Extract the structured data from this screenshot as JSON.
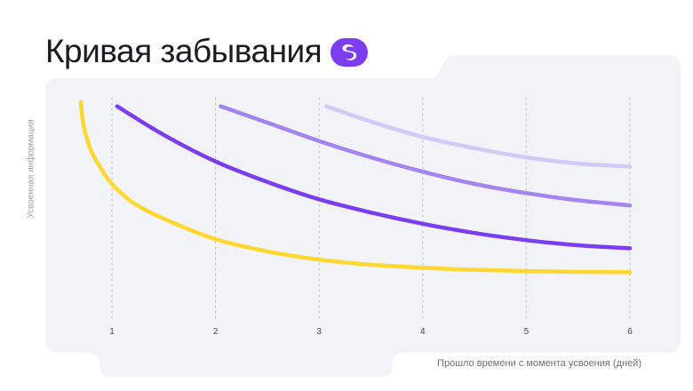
{
  "header": {
    "title": "Кривая забывания",
    "logo_icon": "skyeng-logo-icon"
  },
  "colors": {
    "background": "#ffffff",
    "panel": "#f1f3f6",
    "grid": "#c9ccd3",
    "yellow": "#ffd72e",
    "purple_dark": "#7c3cf0",
    "purple_mid": "#a384f2",
    "purple_light": "#d3c9f7",
    "logo": "#7c3cf0"
  },
  "chart_data": {
    "type": "line",
    "title": "Кривая забывания",
    "xlabel": "Прошло времени с момента усвоения (дней)",
    "ylabel": "Усвоенная информация",
    "x_ticks": [
      1,
      2,
      3,
      4,
      5,
      6
    ],
    "xlim": [
      0.3,
      6.7
    ],
    "ylim": [
      0,
      100
    ],
    "grid": "vertical-dotted",
    "y_tick_labels": "none",
    "series": [
      {
        "color": "#ffd72e",
        "x": [
          0.7,
          0.72,
          0.76,
          0.8,
          0.9,
          1.0,
          1.2,
          1.5,
          2.0,
          2.5,
          3.0,
          3.5,
          4.0,
          4.5,
          5.0,
          5.5,
          6.0
        ],
        "y": [
          100,
          90,
          82,
          76,
          67,
          60,
          51,
          43,
          33,
          27,
          23,
          20.5,
          19,
          18,
          17.4,
          17,
          16.8
        ]
      },
      {
        "color": "#7c3cf0",
        "x": [
          1.05,
          1.5,
          2.0,
          2.5,
          3.0,
          3.5,
          4.0,
          4.5,
          5.0,
          5.5,
          6.0
        ],
        "y": [
          98,
          84,
          71,
          61,
          52.5,
          46,
          40.5,
          36,
          32.5,
          30,
          28.5
        ]
      },
      {
        "color": "#a384f2",
        "x": [
          2.05,
          2.5,
          3.0,
          3.5,
          4.0,
          4.5,
          5.0,
          5.5,
          6.0
        ],
        "y": [
          98,
          90,
          81,
          73,
          66,
          60,
          55.5,
          52,
          49.5
        ]
      },
      {
        "color": "#d3c9f7",
        "x": [
          3.07,
          3.5,
          4.0,
          4.5,
          5.0,
          5.5,
          6.0
        ],
        "y": [
          98,
          90.5,
          83,
          77.5,
          73,
          70,
          68.5
        ]
      }
    ]
  }
}
